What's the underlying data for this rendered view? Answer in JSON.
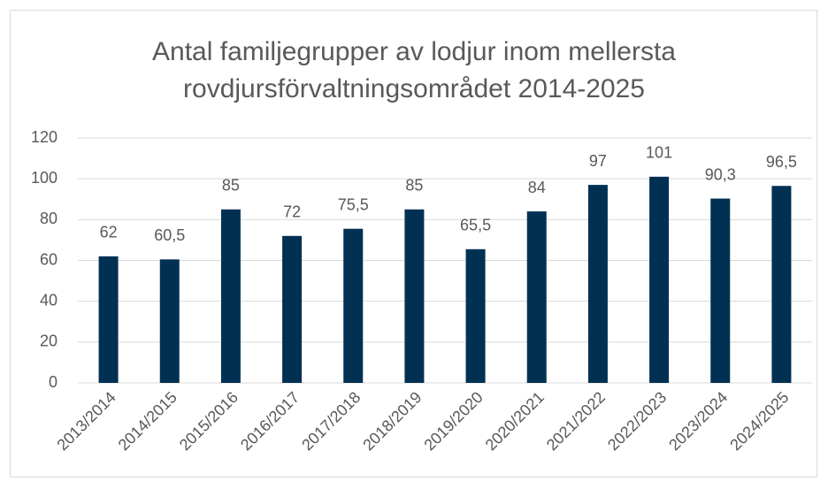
{
  "chart_data": {
    "type": "bar",
    "title": "Antal familjegrupper av lodjur inom mellersta rovdjursförvaltningsområdet 2014-2025",
    "categories": [
      "2013/2014",
      "2014/2015",
      "2015/2016",
      "2016/2017",
      "2017/2018",
      "2018/2019",
      "2019/2020",
      "2020/2021",
      "2021/2022",
      "2022/2023",
      "2023/2024",
      "2024/2025"
    ],
    "values": [
      62,
      60.5,
      85,
      72,
      75.5,
      85,
      65.5,
      84,
      97,
      101,
      90.3,
      96.5
    ],
    "value_labels": [
      "62",
      "60,5",
      "85",
      "72",
      "75,5",
      "85",
      "65,5",
      "84",
      "97",
      "101",
      "90,3",
      "96,5"
    ],
    "color": "#003153",
    "ylim": [
      0,
      120
    ],
    "yticks": [
      0,
      20,
      40,
      60,
      80,
      100,
      120
    ],
    "grid": true
  }
}
